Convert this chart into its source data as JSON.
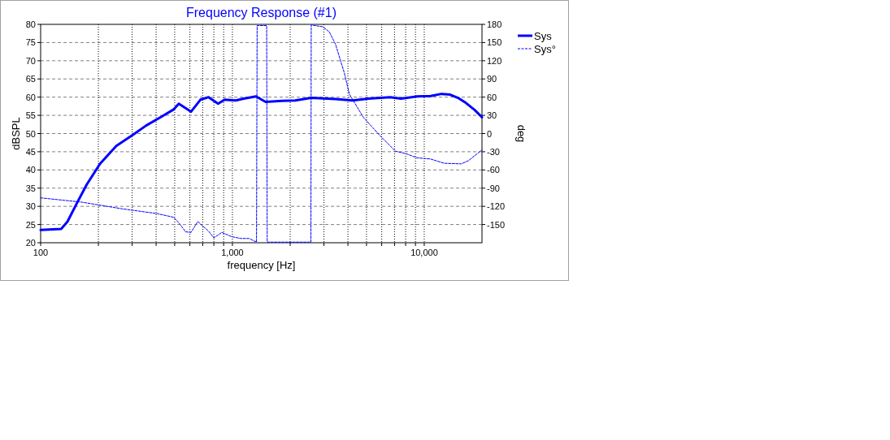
{
  "chart_data": {
    "type": "line",
    "title": "Frequency Response (#1)",
    "xlabel": "frequency [Hz]",
    "ylabel": "dBSPL",
    "y2label": "deg",
    "log": "x",
    "grid": true,
    "legend": "top right",
    "xlim": [
      100,
      20000
    ],
    "xticks": [
      100,
      {
        "value": 200,
        "label": null
      },
      {
        "value": 300,
        "label": null
      },
      {
        "value": 400,
        "label": null
      },
      {
        "value": 500,
        "label": null
      },
      {
        "value": 600,
        "label": null
      },
      {
        "value": 700,
        "label": null
      },
      {
        "value": 800,
        "label": null
      },
      {
        "value": 900,
        "label": null
      },
      {
        "value": 1000,
        "label": "1,000"
      },
      {
        "value": 2000,
        "label": null
      },
      {
        "value": 3000,
        "label": null
      },
      {
        "value": 4000,
        "label": null
      },
      {
        "value": 5000,
        "label": null
      },
      {
        "value": 6000,
        "label": null
      },
      {
        "value": 7000,
        "label": null
      },
      {
        "value": 8000,
        "label": null
      },
      {
        "value": 9000,
        "label": null
      },
      {
        "value": 10000,
        "label": "10,000"
      }
    ],
    "ylim": [
      20,
      80
    ],
    "yticks": [
      20,
      25,
      30,
      35,
      40,
      45,
      50,
      55,
      60,
      65,
      70,
      75,
      80
    ],
    "y2lim": [
      -180,
      180
    ],
    "y2ticks": [
      -150,
      -120,
      -90,
      -60,
      -30,
      0,
      30,
      60,
      90,
      120,
      150,
      180
    ],
    "series": [
      {
        "name": "Sys",
        "color": "#0000ff",
        "line_style": "solid",
        "x": [
          100,
          128,
          138,
          155,
          174,
          204,
          248,
          302,
          355,
          432,
          493,
          525,
          608,
          681,
          751,
          842,
          910,
          1040,
          1145,
          1327,
          1489,
          1811,
          2124,
          2577,
          3449,
          4222,
          5125,
          6640,
          7552,
          9168,
          10800,
          12300,
          13650,
          15000,
          16500,
          18300,
          20000
        ],
        "values": [
          23.5,
          23.8,
          25.8,
          31,
          36,
          41.7,
          46.6,
          49.6,
          52.2,
          54.8,
          56.6,
          58.2,
          56,
          59.3,
          60,
          58.2,
          59.3,
          59.1,
          59.6,
          60.2,
          58.7,
          59,
          59.1,
          59.8,
          59.5,
          59.1,
          59.6,
          60,
          59.6,
          60.2,
          60.3,
          60.9,
          60.7,
          59.8,
          58.4,
          56.5,
          54.5
        ]
      },
      {
        "name": "Sys°",
        "color": "#0000ff",
        "line_style": "dashed",
        "axis": "y2",
        "x": [
          100,
          163,
          265,
          405,
          493,
          525,
          570,
          608,
          660,
          751,
          800,
          880,
          990,
          1110,
          1223,
          1335,
          1345,
          1508,
          1518,
          2565,
          2575,
          2960,
          3200,
          3449,
          3830,
          4070,
          4810,
          5820,
          7070,
          8080,
          9170,
          10800,
          12700,
          15600,
          17000,
          20000
        ],
        "values": [
          -106,
          -113,
          -124,
          -132,
          -138,
          -147,
          -162,
          -163,
          -145,
          -161,
          -172,
          -163,
          -170,
          -173,
          -173,
          -179,
          178,
          178,
          -179,
          -179,
          179,
          176,
          167.5,
          147,
          100,
          65,
          27,
          -2,
          -29,
          -33.5,
          -40,
          -42,
          -49,
          -50,
          -44.7,
          -27
        ]
      }
    ]
  }
}
